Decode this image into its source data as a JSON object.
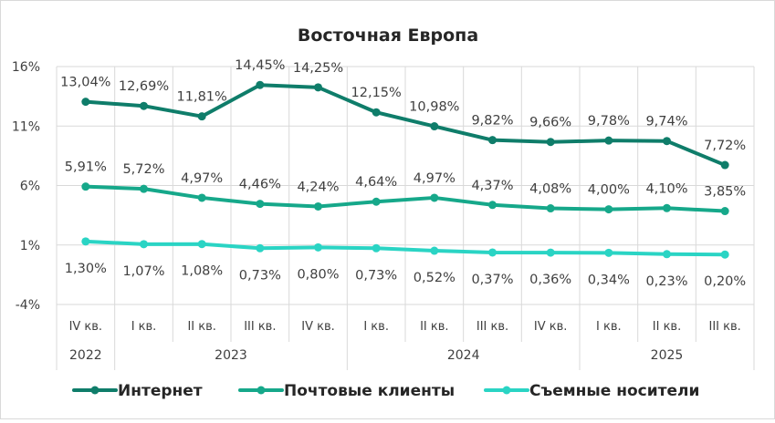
{
  "chart_data": {
    "type": "line",
    "title": "Восточная Европа",
    "xlabel": "",
    "ylabel": "",
    "ylim": [
      -4,
      16
    ],
    "yticks": [
      {
        "value": 16,
        "label": "16%"
      },
      {
        "value": 11,
        "label": "11%"
      },
      {
        "value": 6,
        "label": "6%"
      },
      {
        "value": 1,
        "label": "1%"
      },
      {
        "value": -4,
        "label": "-4%"
      }
    ],
    "categories": [
      "IV кв.",
      "I кв.",
      "II кв.",
      "III кв.",
      "IV кв.",
      "I кв.",
      "II кв.",
      "III кв.",
      "IV кв.",
      "I кв.",
      "II кв.",
      "III кв."
    ],
    "year_groups": [
      {
        "label": "2022",
        "start": 0,
        "end": 0
      },
      {
        "label": "2023",
        "start": 1,
        "end": 4
      },
      {
        "label": "2024",
        "start": 5,
        "end": 8
      },
      {
        "label": "2025",
        "start": 9,
        "end": 11
      }
    ],
    "grid": true,
    "legend_position": "bottom",
    "series": [
      {
        "name": "Интернет",
        "color": "#0f7d6a",
        "values": [
          13.04,
          12.69,
          11.81,
          14.45,
          14.25,
          12.15,
          10.98,
          9.82,
          9.66,
          9.78,
          9.74,
          7.72
        ],
        "labels": [
          "13,04%",
          "12,69%",
          "11,81%",
          "14,45%",
          "14,25%",
          "12,15%",
          "10,98%",
          "9,82%",
          "9,66%",
          "9,78%",
          "9,74%",
          "7,72%"
        ]
      },
      {
        "name": "Почтовые клиенты",
        "color": "#16a88a",
        "values": [
          5.91,
          5.72,
          4.97,
          4.46,
          4.24,
          4.64,
          4.97,
          4.37,
          4.08,
          4.0,
          4.1,
          3.85
        ],
        "labels": [
          "5,91%",
          "5,72%",
          "4,97%",
          "4,46%",
          "4,24%",
          "4,64%",
          "4,97%",
          "4,37%",
          "4,08%",
          "4,00%",
          "4,10%",
          "3,85%"
        ]
      },
      {
        "name": "Съемные носители",
        "color": "#2ad4c4",
        "values": [
          1.3,
          1.07,
          1.08,
          0.73,
          0.8,
          0.73,
          0.52,
          0.37,
          0.36,
          0.34,
          0.23,
          0.2
        ],
        "labels": [
          "1,30%",
          "1,07%",
          "1,08%",
          "0,73%",
          "0,80%",
          "0,73%",
          "0,52%",
          "0,37%",
          "0,36%",
          "0,34%",
          "0,23%",
          "0,20%"
        ]
      }
    ]
  }
}
